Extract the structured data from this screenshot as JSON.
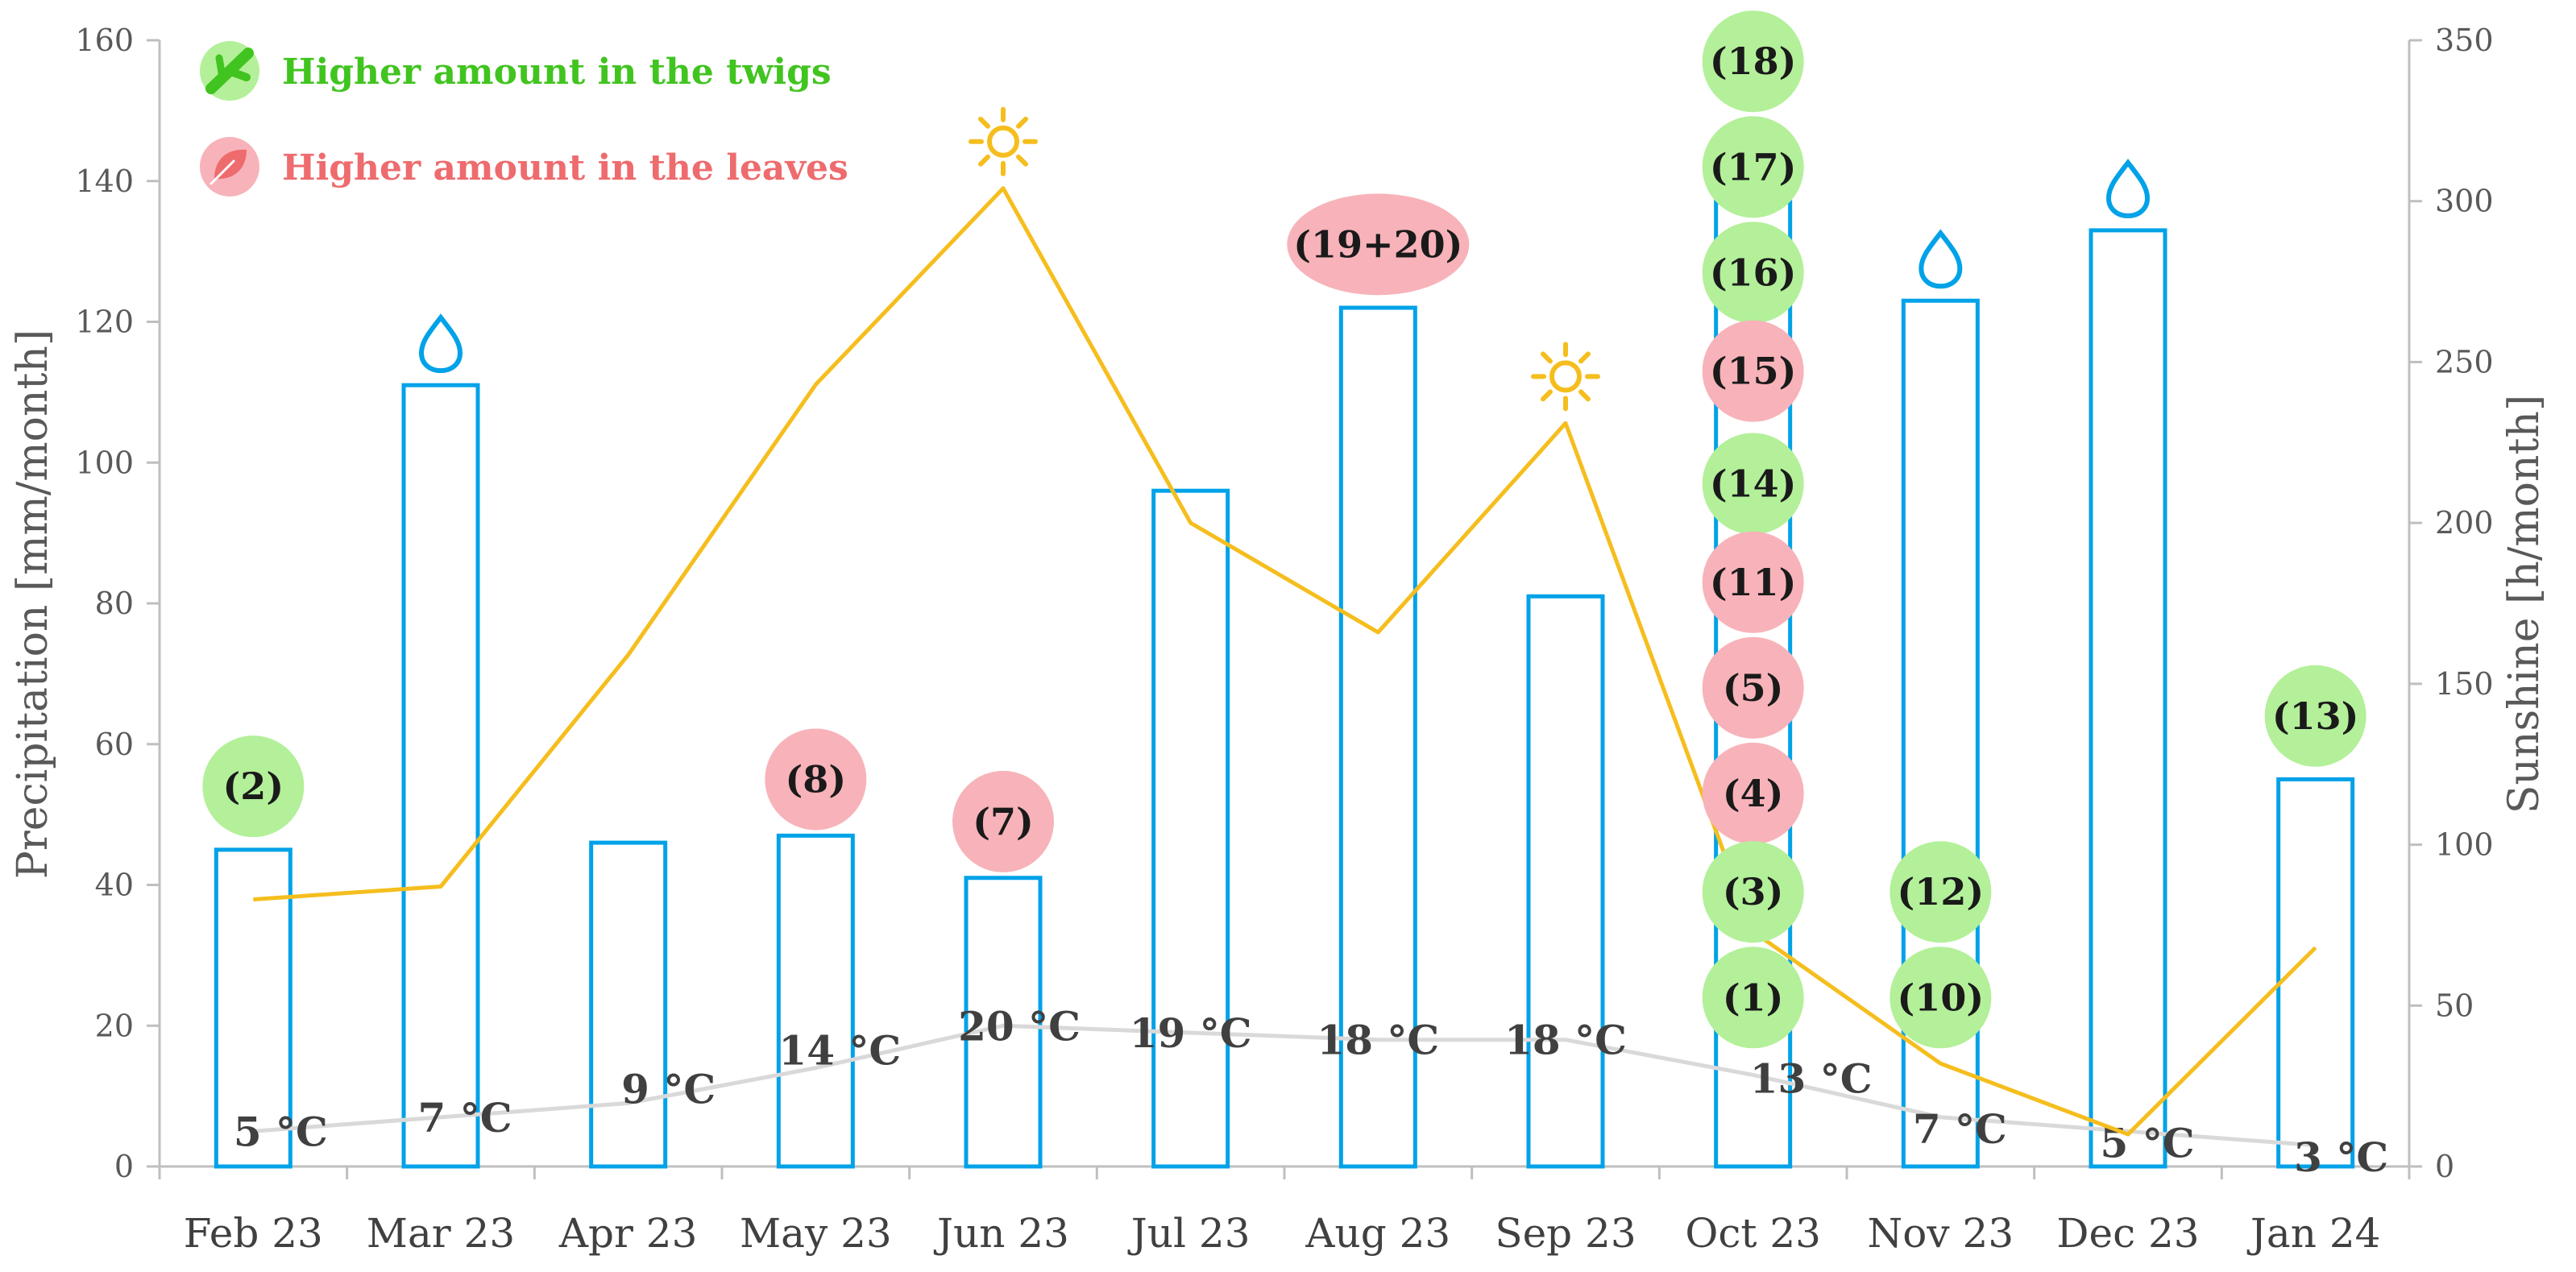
{
  "chart_data": {
    "type": "bar",
    "categories": [
      "Feb 23",
      "Mar 23",
      "Apr 23",
      "May 23",
      "Jun 23",
      "Jul 23",
      "Aug 23",
      "Sep 23",
      "Oct 23",
      "Nov 23",
      "Dec 23",
      "Jan 24"
    ],
    "series": [
      {
        "type": "bar",
        "axis": "left",
        "color": "#00a2e8",
        "values": [
          45,
          111,
          46,
          47,
          41,
          96,
          122,
          81,
          137,
          123,
          133,
          55
        ]
      },
      {
        "type": "line",
        "axis": "right",
        "color": "#f5be1e",
        "values": [
          83,
          87,
          159,
          243,
          304,
          200,
          166,
          231,
          73,
          32,
          10,
          68
        ]
      },
      {
        "type": "line",
        "axis": "left",
        "color": "#d9d9d9",
        "values": [
          5,
          7,
          9,
          14,
          20,
          19,
          18,
          18,
          13,
          7,
          5,
          3
        ]
      }
    ],
    "temperature_labels": [
      "5 °C",
      "7 °C",
      "9 °C",
      "14 °C",
      "20 °C",
      "19 °C",
      "18 °C",
      "18 °C",
      "13 °C",
      "7 °C",
      "5 °C",
      "3 °C"
    ],
    "ylabel": "Precipitation [mm/month]",
    "y2label": "Sunshine [h/month]",
    "ylim": [
      0,
      160
    ],
    "y2lim": [
      0,
      350
    ],
    "yticks": [
      0,
      20,
      40,
      60,
      80,
      100,
      120,
      140,
      160
    ],
    "y2ticks": [
      0,
      50,
      100,
      150,
      200,
      250,
      300,
      350
    ],
    "grid": false,
    "legend_position": "top-left",
    "legend": [
      {
        "label": "Higher amount in the twigs",
        "color": "#41c41f",
        "icon": "twig-icon"
      },
      {
        "label": "Higher amount in the leaves",
        "color": "#ee6b6e",
        "icon": "leaf-icon"
      }
    ],
    "markers": [
      {
        "category": "Jun 23",
        "icon": "sun-icon",
        "axis": "right",
        "value": 304
      },
      {
        "category": "Sep 23",
        "icon": "sun-icon",
        "axis": "right",
        "value": 231
      },
      {
        "category": "Mar 23",
        "icon": "drop-icon",
        "axis": "left",
        "value": 111
      },
      {
        "category": "Nov 23",
        "icon": "drop-icon",
        "axis": "left",
        "value": 123
      },
      {
        "category": "Dec 23",
        "icon": "drop-icon",
        "axis": "left",
        "value": 133
      }
    ],
    "badges": [
      {
        "category": "Feb 23",
        "text": "(2)",
        "kind": "twigs",
        "level": 54
      },
      {
        "category": "May 23",
        "text": "(8)",
        "kind": "leaves",
        "level": 55
      },
      {
        "category": "Jun 23",
        "text": "(7)",
        "kind": "leaves",
        "level": 49
      },
      {
        "category": "Aug 23",
        "text": "(19+20)",
        "kind": "leaves",
        "level": 131,
        "wide": true
      },
      {
        "category": "Oct 23",
        "text": "(18)",
        "kind": "twigs",
        "level": 157
      },
      {
        "category": "Oct 23",
        "text": "(17)",
        "kind": "twigs",
        "level": 142
      },
      {
        "category": "Oct 23",
        "text": "(16)",
        "kind": "twigs",
        "level": 127
      },
      {
        "category": "Oct 23",
        "text": "(15)",
        "kind": "leaves",
        "level": 113
      },
      {
        "category": "Oct 23",
        "text": "(14)",
        "kind": "twigs",
        "level": 97
      },
      {
        "category": "Oct 23",
        "text": "(11)",
        "kind": "leaves",
        "level": 83
      },
      {
        "category": "Oct 23",
        "text": "(5)",
        "kind": "leaves",
        "level": 68
      },
      {
        "category": "Oct 23",
        "text": "(4)",
        "kind": "leaves",
        "level": 53
      },
      {
        "category": "Oct 23",
        "text": "(3)",
        "kind": "twigs",
        "level": 39
      },
      {
        "category": "Oct 23",
        "text": "(1)",
        "kind": "twigs",
        "level": 24
      },
      {
        "category": "Nov 23",
        "text": "(12)",
        "kind": "twigs",
        "level": 39
      },
      {
        "category": "Nov 23",
        "text": "(10)",
        "kind": "twigs",
        "level": 24
      },
      {
        "category": "Jan 24",
        "text": "(13)",
        "kind": "twigs",
        "level": 64
      }
    ],
    "badge_colors": {
      "twigs": "#b3f099",
      "leaves": "#f7b3b9"
    }
  }
}
